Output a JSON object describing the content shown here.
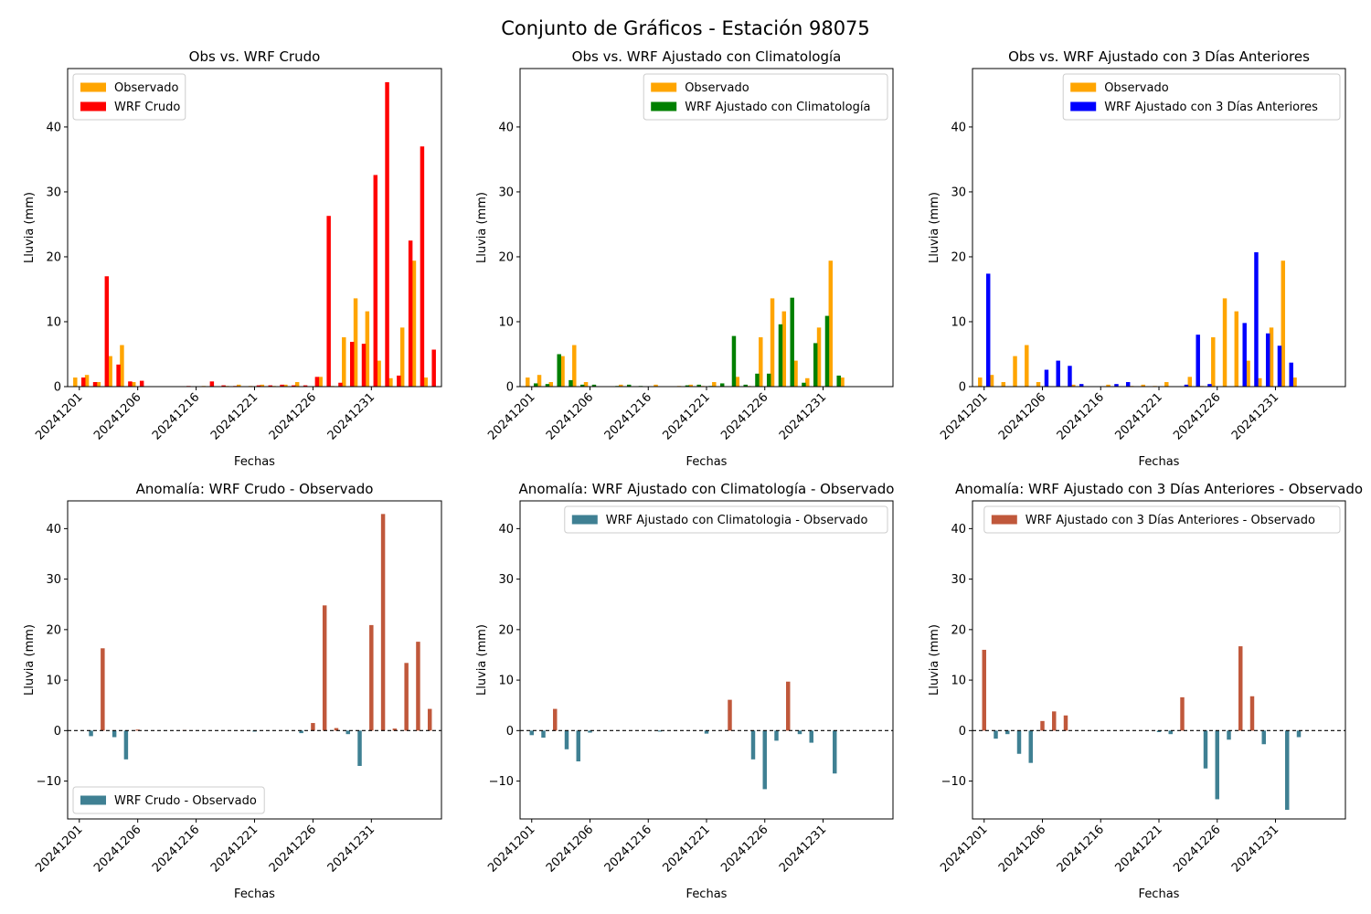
{
  "figure": {
    "suptitle": "Conjunto de Gráficos - Estación 98075"
  },
  "colors": {
    "observado": "#ffa500",
    "wrf_crudo": "#ff0000",
    "wrf_clim": "#008000",
    "wrf_3dias": "#0000ff",
    "anom_pos": "#c0583b",
    "anom_neg": "#3f8093"
  },
  "chart_data": [
    {
      "type": "bar",
      "title": "Obs vs. WRF Crudo",
      "xlabel": "Fechas",
      "ylabel": "Lluvia (mm)",
      "ylim": [
        0,
        49
      ],
      "yticks": [
        0,
        10,
        20,
        30,
        40
      ],
      "xlim": [
        -1,
        31
      ],
      "xticks": [
        "20241201",
        "20241206",
        "20241216",
        "20241221",
        "20241226",
        "20241231"
      ],
      "xtick_positions": [
        0,
        5,
        10,
        15,
        20,
        25
      ],
      "legend": "top-left",
      "series": [
        {
          "name": "Observado",
          "color_key": "observado",
          "offset": -0.35,
          "values": [
            1.4,
            1.8,
            0.7,
            4.7,
            6.4,
            0.7,
            0,
            0,
            0,
            0,
            0,
            0.1,
            0,
            0.1,
            0.3,
            0.1,
            0.3,
            0.1,
            0.3,
            0.7,
            0,
            1.5,
            0.1,
            7.6,
            13.6,
            11.6,
            4.0,
            1.3,
            9.1,
            19.4,
            1.4
          ]
        },
        {
          "name": "WRF Crudo",
          "color_key": "wrf_crudo",
          "offset": 0.35,
          "values": [
            1.4,
            0.7,
            17.0,
            3.4,
            0.8,
            0.9,
            0,
            0,
            0,
            0.1,
            0,
            0.8,
            0.2,
            0.1,
            0,
            0.2,
            0.2,
            0.3,
            0.2,
            0.2,
            1.5,
            26.3,
            0.6,
            6.9,
            6.6,
            32.6,
            46.9,
            1.7,
            22.5,
            37.0,
            5.7
          ]
        }
      ]
    },
    {
      "type": "bar",
      "title": "Obs vs. WRF Ajustado con Climatología",
      "xlabel": "Fechas",
      "ylabel": "Lluvia (mm)",
      "ylim": [
        0,
        49
      ],
      "yticks": [
        0,
        10,
        20,
        30,
        40
      ],
      "xlim": [
        -1,
        31
      ],
      "xticks": [
        "20241201",
        "20241206",
        "20241216",
        "20241221",
        "20241226",
        "20241231"
      ],
      "xtick_positions": [
        0,
        5,
        10,
        15,
        20,
        25
      ],
      "legend": "top-right",
      "series": [
        {
          "name": "Observado",
          "color_key": "observado",
          "offset": -0.35,
          "values": [
            1.4,
            1.8,
            0.7,
            4.7,
            6.4,
            0.7,
            0,
            0,
            0.3,
            0,
            0,
            0.3,
            0,
            0.1,
            0.3,
            0.1,
            0.7,
            0,
            1.5,
            0.1,
            7.6,
            13.6,
            11.6,
            4.0,
            1.3,
            9.1,
            19.4,
            1.4,
            0,
            0,
            0
          ]
        },
        {
          "name": "WRF Ajustado con Climatología",
          "color_key": "wrf_clim",
          "offset": 0.35,
          "values": [
            0.5,
            0.4,
            5.0,
            1.0,
            0.3,
            0.3,
            0,
            0.1,
            0.3,
            0.1,
            0,
            0,
            0,
            0.2,
            0.3,
            0.1,
            0.5,
            7.8,
            0.3,
            2.0,
            2.0,
            9.6,
            13.7,
            0.6,
            6.7,
            10.9,
            1.7,
            0,
            0,
            0,
            0
          ]
        }
      ]
    },
    {
      "type": "bar",
      "title": "Obs vs. WRF Ajustado con 3 Días Anteriores",
      "xlabel": "Fechas",
      "ylabel": "Lluvia (mm)",
      "ylim": [
        0,
        49
      ],
      "yticks": [
        0,
        10,
        20,
        30,
        40
      ],
      "xlim": [
        -1,
        31
      ],
      "xticks": [
        "20241201",
        "20241206",
        "20241216",
        "20241221",
        "20241226",
        "20241231"
      ],
      "xtick_positions": [
        0,
        5,
        10,
        15,
        20,
        25
      ],
      "legend": "top-right",
      "series": [
        {
          "name": "Observado",
          "color_key": "observado",
          "offset": -0.35,
          "values": [
            1.4,
            1.8,
            0.7,
            4.7,
            6.4,
            0.7,
            0,
            0,
            0.3,
            0,
            0,
            0.3,
            0,
            0.1,
            0.3,
            0.1,
            0.7,
            0,
            1.5,
            0.1,
            7.6,
            13.6,
            11.6,
            4.0,
            1.3,
            9.1,
            19.4,
            1.4,
            0,
            0,
            0
          ]
        },
        {
          "name": "WRF Ajustado con 3 Días Anteriores",
          "color_key": "wrf_3dias",
          "offset": 0.35,
          "values": [
            17.4,
            0,
            0,
            0,
            0,
            2.6,
            4.0,
            3.2,
            0.4,
            0,
            0,
            0.4,
            0.7,
            0,
            0,
            0,
            0,
            0.3,
            8.0,
            0.4,
            0,
            0,
            9.8,
            20.7,
            8.2,
            6.3,
            3.7,
            0,
            0,
            0,
            0
          ]
        }
      ]
    },
    {
      "type": "bar",
      "title": "Anomalía: WRF Crudo - Observado",
      "xlabel": "Fechas",
      "ylabel": "Lluvia (mm)",
      "ylim": [
        -17.5,
        45.5
      ],
      "yticks": [
        -10,
        0,
        10,
        20,
        30,
        40
      ],
      "xlim": [
        -1,
        31
      ],
      "xticks": [
        "20241201",
        "20241206",
        "20241216",
        "20241221",
        "20241226",
        "20241231"
      ],
      "xtick_positions": [
        0,
        5,
        10,
        15,
        20,
        25
      ],
      "legend": "bottom-left",
      "zero_line": true,
      "series": [
        {
          "name": "WRF Crudo - Observado",
          "color_key": "anom_neg",
          "values": [
            0,
            -1.1,
            16.3,
            -1.3,
            -5.7,
            0.2,
            0,
            0,
            0,
            0.1,
            0,
            0,
            0,
            0,
            0,
            -0.2,
            0,
            0,
            0,
            -0.5,
            1.5,
            24.8,
            0.5,
            -0.7,
            -7.0,
            20.9,
            42.9,
            0.4,
            13.4,
            17.6,
            4.3
          ]
        }
      ]
    },
    {
      "type": "bar",
      "title": "Anomalía: WRF Ajustado con Climatología - Observado",
      "xlabel": "Fechas",
      "ylabel": "Lluvia (mm)",
      "ylim": [
        -17.5,
        45.5
      ],
      "yticks": [
        -10,
        0,
        10,
        20,
        30,
        40
      ],
      "xlim": [
        -1,
        31
      ],
      "xticks": [
        "20241201",
        "20241206",
        "20241216",
        "20241221",
        "20241226",
        "20241231"
      ],
      "xtick_positions": [
        0,
        5,
        10,
        15,
        20,
        25
      ],
      "legend": "top-right",
      "zero_line": true,
      "series": [
        {
          "name": "WRF Ajustado con Climatologia - Observado",
          "color_key": "anom_neg",
          "values": [
            -0.9,
            -1.4,
            4.3,
            -3.7,
            -6.1,
            -0.4,
            0,
            0,
            0,
            0,
            0,
            -0.2,
            0,
            0,
            0,
            -0.6,
            0,
            6.1,
            0,
            -5.7,
            -11.6,
            -2.0,
            9.7,
            -0.7,
            -2.4,
            0,
            -8.5,
            0,
            0,
            0,
            0
          ]
        }
      ]
    },
    {
      "type": "bar",
      "title": "Anomalía: WRF Ajustado con 3 Días Anteriores - Observado",
      "xlabel": "Fechas",
      "ylabel": "Lluvia (mm)",
      "ylim": [
        -17.5,
        45.5
      ],
      "yticks": [
        -10,
        0,
        10,
        20,
        30,
        40
      ],
      "xlim": [
        -1,
        31
      ],
      "xticks": [
        "20241201",
        "20241206",
        "20241216",
        "20241221",
        "20241226",
        "20241231"
      ],
      "xtick_positions": [
        0,
        5,
        10,
        15,
        20,
        25
      ],
      "legend": "top-right",
      "zero_line": true,
      "series": [
        {
          "name": "WRF Ajustado con 3 Días Anteriores - Observado",
          "color_key": "anom_pos",
          "values": [
            16.0,
            -1.6,
            -0.7,
            -4.6,
            -6.4,
            1.9,
            3.8,
            3.0,
            0,
            0,
            0,
            0,
            0,
            0,
            0,
            -0.3,
            -0.7,
            6.6,
            0,
            -7.5,
            -13.6,
            -1.8,
            16.7,
            6.8,
            -2.7,
            0,
            -15.7,
            -1.3,
            0,
            0,
            0
          ]
        }
      ]
    }
  ]
}
